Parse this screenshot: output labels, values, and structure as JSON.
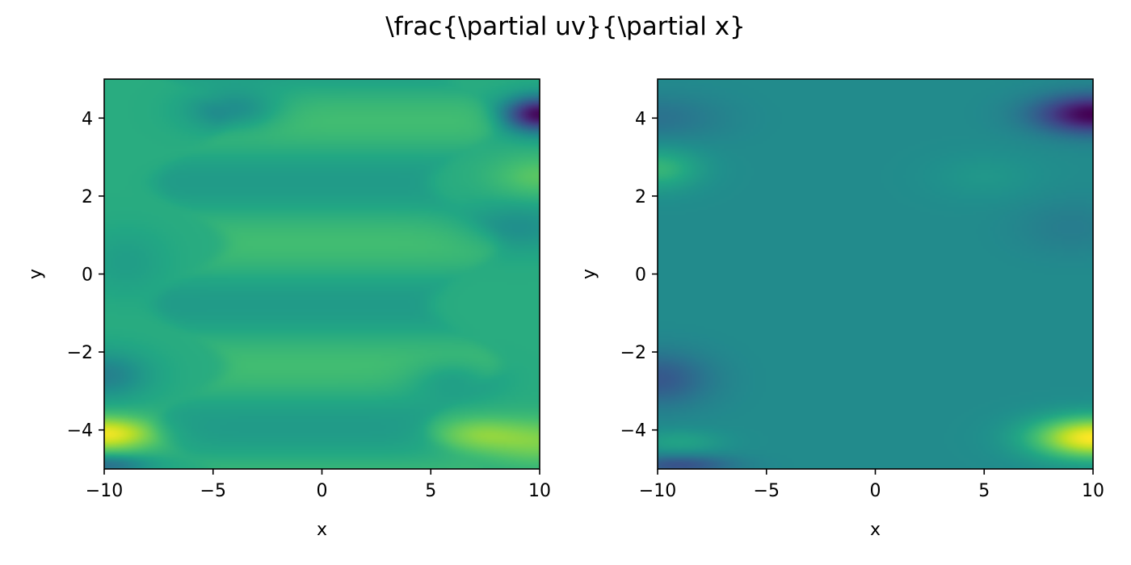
{
  "figure": {
    "title": "\\frac{\\partial uv}{\\partial x}"
  },
  "colors": {
    "colormap": "viridis",
    "axis": "#000000",
    "background": "#ffffff"
  },
  "chart_data": [
    {
      "type": "heatmap",
      "xlabel": "x",
      "ylabel": "y",
      "xlim": [
        -10,
        10
      ],
      "ylim": [
        -5,
        5
      ],
      "xticks": [
        -10,
        -5,
        0,
        5,
        10
      ],
      "yticks": [
        -4,
        -2,
        0,
        2,
        4
      ],
      "xtick_labels": [
        "−10",
        "−5",
        "0",
        "5",
        "10"
      ],
      "ytick_labels": [
        "−4",
        "−2",
        "0",
        "2",
        "4"
      ],
      "colormap": "viridis",
      "grid": false,
      "legend": "none"
    },
    {
      "type": "heatmap",
      "xlabel": "x",
      "ylabel": "y",
      "xlim": [
        -10,
        10
      ],
      "ylim": [
        -5,
        5
      ],
      "xticks": [
        -10,
        -5,
        0,
        5,
        10
      ],
      "yticks": [
        -4,
        -2,
        0,
        2,
        4
      ],
      "xtick_labels": [
        "−10",
        "−5",
        "0",
        "5",
        "10"
      ],
      "ytick_labels": [
        "−4",
        "−2",
        "0",
        "2",
        "4"
      ],
      "colormap": "viridis",
      "grid": false,
      "legend": "none"
    }
  ]
}
